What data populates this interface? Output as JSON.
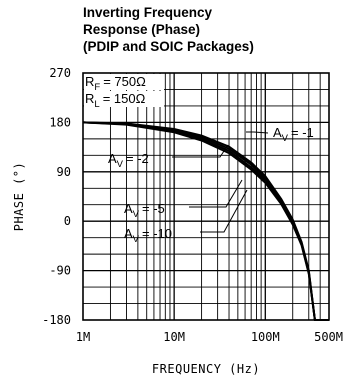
{
  "chart_data": {
    "type": "line",
    "title_lines": [
      "Inverting Frequency",
      "Response (Phase)",
      "(PDIP and SOIC Packages)"
    ],
    "xlabel": "FREQUENCY (Hz)",
    "ylabel": "PHASE (°)",
    "x_scale": "log",
    "xlim": [
      1000000,
      500000000
    ],
    "ylim": [
      -180,
      270
    ],
    "grid": true,
    "x_tick_labels": [
      {
        "value": 1000000,
        "label": "1M"
      },
      {
        "value": 10000000,
        "label": "10M"
      },
      {
        "value": 100000000,
        "label": "100M"
      },
      {
        "value": 500000000,
        "label": "500M"
      }
    ],
    "y_tick_labels": [
      {
        "value": 270,
        "label": "270"
      },
      {
        "value": 180,
        "label": "180"
      },
      {
        "value": 90,
        "label": "90"
      },
      {
        "value": 0,
        "label": "0"
      },
      {
        "value": -90,
        "label": "-90"
      },
      {
        "value": -180,
        "label": "-180"
      }
    ],
    "conditions": [
      {
        "symbol": "R",
        "sub": "F",
        "value": "= 750Ω"
      },
      {
        "symbol": "R",
        "sub": "L",
        "value": "= 150Ω"
      }
    ],
    "series": [
      {
        "label_main": "A",
        "label_sub": "V",
        "label_value": "= -1",
        "x": [
          1000000,
          3000000,
          10000000,
          20000000,
          40000000,
          70000000,
          100000000,
          150000000,
          200000000,
          250000000,
          300000000,
          350000000,
          400000000,
          500000000
        ],
        "y": [
          180,
          178,
          168,
          156,
          136,
          107,
          82,
          40,
          3,
          -38,
          -90,
          -180,
          -180,
          -180
        ]
      },
      {
        "label_main": "A",
        "label_sub": "V",
        "label_value": "= -2",
        "x": [
          1000000,
          3000000,
          10000000,
          20000000,
          40000000,
          70000000,
          100000000,
          150000000,
          200000000,
          250000000,
          300000000,
          350000000,
          400000000,
          500000000
        ],
        "y": [
          180,
          177,
          166,
          153,
          132,
          103,
          78,
          37,
          0,
          -40,
          -92,
          -180,
          -180,
          -180
        ]
      },
      {
        "label_main": "A",
        "label_sub": "V",
        "label_value": "= -5",
        "x": [
          1000000,
          3000000,
          10000000,
          20000000,
          40000000,
          70000000,
          100000000,
          150000000,
          200000000,
          250000000,
          300000000,
          350000000,
          400000000,
          500000000
        ],
        "y": [
          180,
          177,
          164,
          150,
          128,
          98,
          74,
          34,
          -3,
          -42,
          -94,
          -180,
          -180,
          -180
        ]
      },
      {
        "label_main": "A",
        "label_sub": "V",
        "label_value": "= -10",
        "x": [
          1000000,
          3000000,
          10000000,
          20000000,
          40000000,
          70000000,
          100000000,
          150000000,
          200000000,
          250000000,
          300000000,
          350000000,
          400000000,
          500000000
        ],
        "y": [
          180,
          176,
          162,
          147,
          124,
          94,
          70,
          31,
          -6,
          -44,
          -96,
          -180,
          -180,
          -180
        ]
      }
    ]
  }
}
